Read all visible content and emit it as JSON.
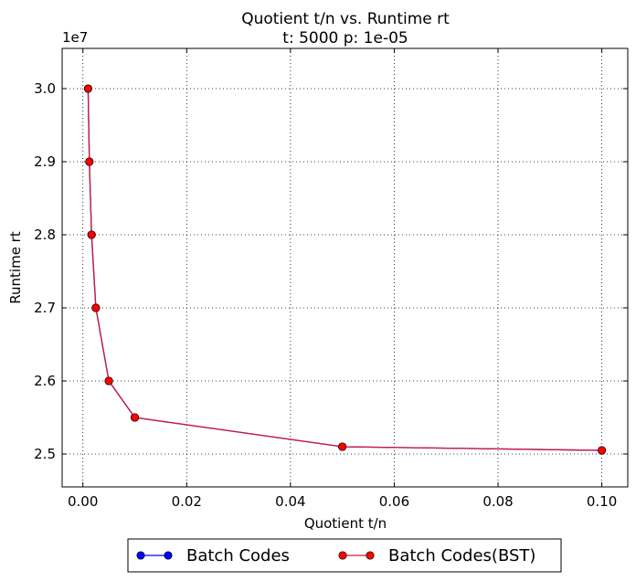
{
  "chart_data": {
    "type": "line",
    "title": "Quotient t/n vs. Runtime rt",
    "subtitle": "t: 5000 p: 1e-05",
    "xlabel": "Quotient t/n",
    "ylabel": "Runtime rt",
    "y_offset_label": "1e7",
    "xlim": [
      -0.004,
      0.105
    ],
    "ylim": [
      2.455,
      3.055
    ],
    "x_ticks": [
      0.0,
      0.02,
      0.04,
      0.06,
      0.08,
      0.1
    ],
    "x_tick_labels": [
      "0.00",
      "0.02",
      "0.04",
      "0.06",
      "0.08",
      "0.10"
    ],
    "y_ticks": [
      2.5,
      2.6,
      2.7,
      2.8,
      2.9,
      3.0
    ],
    "y_tick_labels": [
      "2.5",
      "2.6",
      "2.7",
      "2.8",
      "2.9",
      "3.0"
    ],
    "grid": true,
    "legend_position": "bottom-center",
    "x": [
      0.001,
      0.00125,
      0.00167,
      0.0025,
      0.005,
      0.01,
      0.05,
      0.1
    ],
    "series": [
      {
        "name": "Batch Codes",
        "color": "#0000ff",
        "values": [
          3.0,
          2.9,
          2.8,
          2.7,
          2.6,
          2.55,
          2.51,
          2.505
        ]
      },
      {
        "name": "Batch Codes(BST)",
        "color": "#ff0000",
        "line_color": "#d01a3a",
        "values": [
          3.0,
          2.9,
          2.8,
          2.7,
          2.6,
          2.55,
          2.51,
          2.505
        ]
      }
    ]
  }
}
